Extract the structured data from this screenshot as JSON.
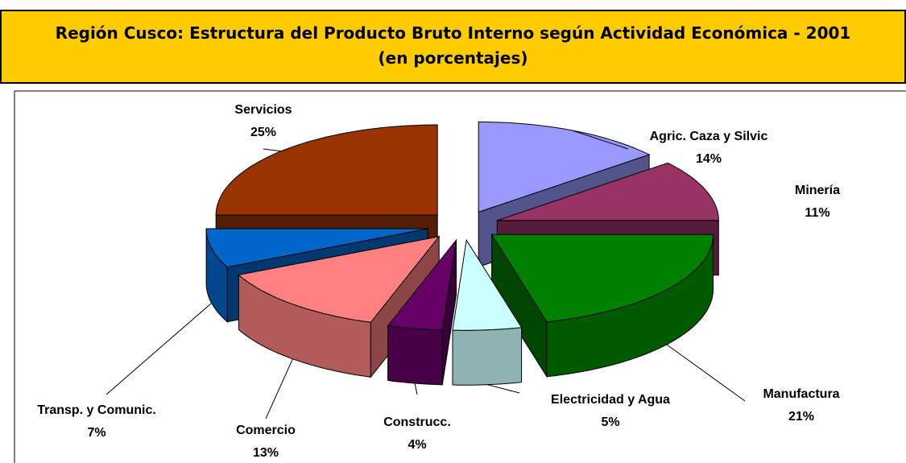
{
  "chart_data": {
    "type": "pie3d",
    "title": "Región Cusco: Estructura del Producto Bruto Interno según Actividad Económica - 2001",
    "subtitle": "(en porcentajes)",
    "categories": [
      "Agric. Caza y Silvic",
      "Minería",
      "Manufactura",
      "Electricidad y Agua",
      "Construcc.",
      "Comercio",
      "Transp. y Comunic.",
      "Servicios"
    ],
    "values": [
      14,
      11,
      21,
      5,
      4,
      13,
      7,
      25
    ],
    "value_labels": [
      "14%",
      "11%",
      "21%",
      "5%",
      "4%",
      "13%",
      "7%",
      "25%"
    ],
    "colors": [
      "#9999ff",
      "#993366",
      "#008000",
      "#ccffff",
      "#660066",
      "#ff8080",
      "#0066cc",
      "#993300"
    ]
  }
}
